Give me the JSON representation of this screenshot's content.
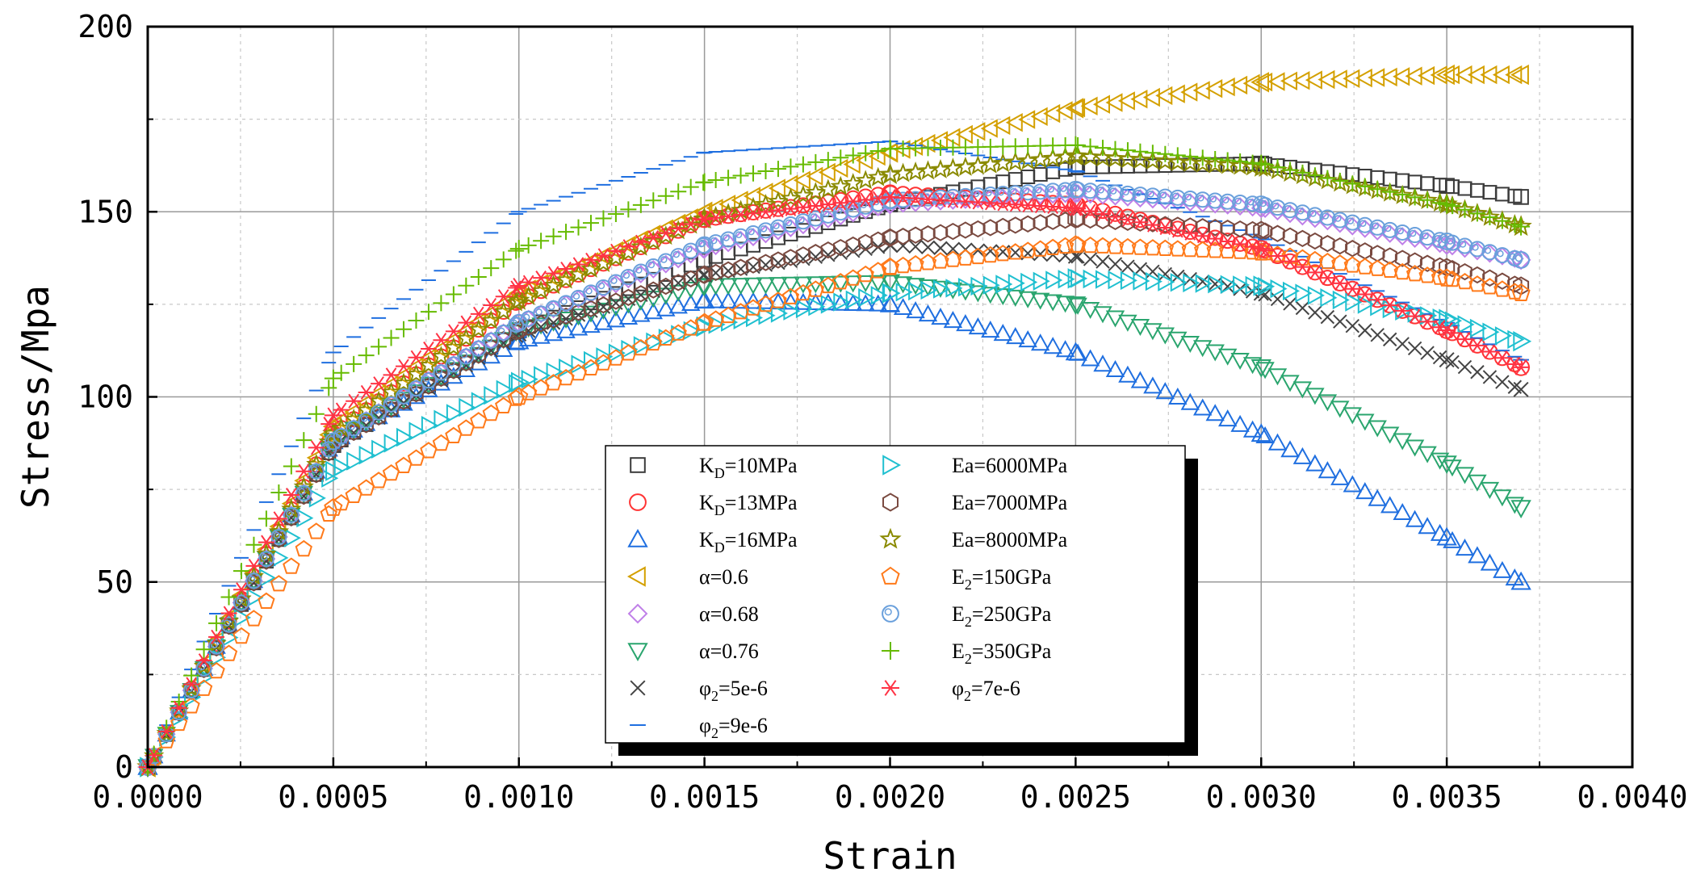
{
  "chart_data": {
    "type": "scatter",
    "xlabel": "Strain",
    "ylabel": "Stress/Mpa",
    "xlim": [
      0,
      0.004
    ],
    "ylim": [
      0,
      200
    ],
    "xticks": [
      0,
      0.0005,
      0.001,
      0.0015,
      0.002,
      0.0025,
      0.003,
      0.0035,
      0.004
    ],
    "xtick_labels": [
      "0.0000",
      "0.0005",
      "0.0010",
      "0.0015",
      "0.0020",
      "0.0025",
      "0.0030",
      "0.0035",
      "0.0040"
    ],
    "yticks": [
      0,
      50,
      100,
      150,
      200
    ],
    "ytick_labels": [
      "0",
      "50",
      "100",
      "150",
      "200"
    ],
    "grid": true,
    "legend_position": "bottom-center",
    "series": [
      {
        "name": "K_D=10MPa",
        "label_main": "K",
        "label_sub": "D",
        "label_rest": "=10MPa",
        "marker": "square",
        "color": "#3a3a3a",
        "x": [
          0,
          0.0005,
          0.001,
          0.0015,
          0.002,
          0.0025,
          0.003,
          0.0035,
          0.0037
        ],
        "y": [
          0,
          87,
          118,
          137,
          152,
          162,
          163,
          157,
          154
        ]
      },
      {
        "name": "K_D=13MPa",
        "label_main": "K",
        "label_sub": "D",
        "label_rest": "=13MPa",
        "marker": "circle",
        "color": "#ff3333",
        "x": [
          0,
          0.0005,
          0.001,
          0.0015,
          0.002,
          0.0025,
          0.003,
          0.0035,
          0.0037
        ],
        "y": [
          0,
          90,
          126,
          148,
          155,
          152,
          140,
          118,
          108
        ]
      },
      {
        "name": "K_D=16MPa",
        "label_main": "K",
        "label_sub": "D",
        "label_rest": "=16MPa",
        "marker": "triangle-up",
        "color": "#1f6fe0",
        "x": [
          0,
          0.0005,
          0.001,
          0.0015,
          0.002,
          0.0025,
          0.003,
          0.0035,
          0.0037
        ],
        "y": [
          0,
          88,
          115,
          126,
          125,
          112,
          90,
          62,
          50
        ]
      },
      {
        "name": "α=0.6",
        "label_main": "α=0.6",
        "label_sub": "",
        "label_rest": "",
        "marker": "triangle-left",
        "color": "#d4a000",
        "x": [
          0,
          0.0005,
          0.001,
          0.0015,
          0.002,
          0.0025,
          0.003,
          0.0035,
          0.0037
        ],
        "y": [
          0,
          92,
          128,
          150,
          166,
          178,
          185,
          187,
          187
        ]
      },
      {
        "name": "α=0.68",
        "label_main": "α=0.68",
        "label_sub": "",
        "label_rest": "",
        "marker": "diamond",
        "color": "#c080e8",
        "x": [
          0,
          0.0005,
          0.001,
          0.0015,
          0.002,
          0.0025,
          0.003,
          0.0035,
          0.0037
        ],
        "y": [
          0,
          88,
          120,
          140,
          152,
          155,
          151,
          141,
          137
        ]
      },
      {
        "name": "α=0.76",
        "label_main": "α=0.76",
        "label_sub": "",
        "label_rest": "",
        "marker": "triangle-down",
        "color": "#2aa56e",
        "x": [
          0,
          0.0005,
          0.001,
          0.0015,
          0.002,
          0.0025,
          0.003,
          0.0035,
          0.0037
        ],
        "y": [
          0,
          88,
          118,
          130,
          131,
          125,
          108,
          82,
          70
        ]
      },
      {
        "name": "φ2=5e-6",
        "label_main": "φ",
        "label_sub": "2",
        "label_rest": "=5e-6",
        "marker": "x",
        "color": "#444444",
        "x": [
          0,
          0.0005,
          0.001,
          0.0015,
          0.002,
          0.0025,
          0.003,
          0.0035,
          0.0037
        ],
        "y": [
          0,
          87,
          117,
          133,
          141,
          138,
          128,
          110,
          102
        ]
      },
      {
        "name": "φ2=9e-6",
        "label_main": "φ",
        "label_sub": "2",
        "label_rest": "=9e-6",
        "marker": "hline",
        "color": "#1f6fe0",
        "x": [
          0,
          0.0005,
          0.001,
          0.0015,
          0.002,
          0.0025,
          0.003,
          0.0035,
          0.0037
        ],
        "y": [
          0,
          112,
          150,
          166,
          169,
          161,
          143,
          120,
          110
        ]
      },
      {
        "name": "Ea=6000MPa",
        "label_main": "Ea=6000MPa",
        "label_sub": "",
        "label_rest": "",
        "marker": "triangle-right",
        "color": "#20c0d0",
        "x": [
          0,
          0.0005,
          0.001,
          0.0015,
          0.002,
          0.0025,
          0.003,
          0.0035,
          0.0037
        ],
        "y": [
          0,
          80,
          104,
          119,
          128,
          132,
          130,
          121,
          115
        ]
      },
      {
        "name": "Ea=7000MPa",
        "label_main": "Ea=7000MPa",
        "label_sub": "",
        "label_rest": "",
        "marker": "hexagon",
        "color": "#7a4a40",
        "x": [
          0,
          0.0005,
          0.001,
          0.0015,
          0.002,
          0.0025,
          0.003,
          0.0035,
          0.0037
        ],
        "y": [
          0,
          87,
          118,
          133,
          143,
          148,
          145,
          135,
          130
        ]
      },
      {
        "name": "Ea=8000MPa",
        "label_main": "Ea=8000MPa",
        "label_sub": "",
        "label_rest": "",
        "marker": "star",
        "color": "#8a8a00",
        "x": [
          0,
          0.0005,
          0.001,
          0.0015,
          0.002,
          0.0025,
          0.003,
          0.0035,
          0.0037
        ],
        "y": [
          0,
          90,
          126,
          148,
          160,
          165,
          162,
          152,
          146
        ]
      },
      {
        "name": "E2=150GPa",
        "label_main": "E",
        "label_sub": "2",
        "label_rest": "=150GPa",
        "marker": "pentagon",
        "color": "#ff7a1a",
        "x": [
          0,
          0.0005,
          0.001,
          0.0015,
          0.002,
          0.0025,
          0.003,
          0.0035,
          0.0037
        ],
        "y": [
          0,
          70,
          100,
          120,
          135,
          141,
          139,
          132,
          128
        ]
      },
      {
        "name": "E2=250GPa",
        "label_main": "E",
        "label_sub": "2",
        "label_rest": "=250GPa",
        "marker": "circle-dot",
        "color": "#6aa0dc",
        "x": [
          0,
          0.0005,
          0.001,
          0.0015,
          0.002,
          0.0025,
          0.003,
          0.0035,
          0.0037
        ],
        "y": [
          0,
          88,
          120,
          141,
          153,
          156,
          152,
          142,
          137
        ]
      },
      {
        "name": "E2=350GPa",
        "label_main": "E",
        "label_sub": "2",
        "label_rest": "=350GPa",
        "marker": "plus",
        "color": "#66bb00",
        "x": [
          0,
          0.0005,
          0.001,
          0.0015,
          0.002,
          0.0025,
          0.003,
          0.0035,
          0.0037
        ],
        "y": [
          0,
          105,
          140,
          158,
          167,
          168,
          163,
          152,
          146
        ]
      },
      {
        "name": "φ2=7e-6",
        "label_main": "φ",
        "label_sub": "2",
        "label_rest": "=7e-6",
        "marker": "asterisk",
        "color": "#ff3344",
        "x": [
          0,
          0.0005,
          0.001,
          0.0015,
          0.002,
          0.0025,
          0.003,
          0.0035,
          0.0037
        ],
        "y": [
          0,
          95,
          130,
          148,
          154,
          151,
          140,
          118,
          108
        ]
      }
    ]
  }
}
